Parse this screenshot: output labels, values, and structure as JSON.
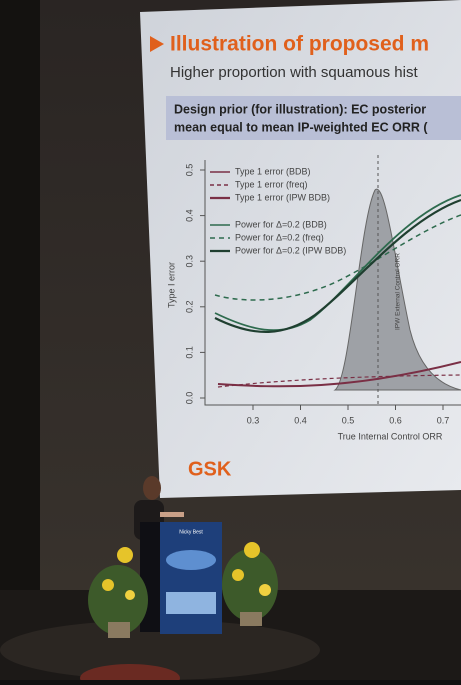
{
  "slide": {
    "title": "Illustration of proposed m",
    "subtitle": "Higher proportion with squamous hist",
    "box_lines": [
      "Design prior (for illustration): EC posterior",
      "mean equal to mean IP-weighted EC ORR ("
    ],
    "legend": [
      "Type 1 error (BDB)",
      "Type 1 error (freq)",
      "Type 1 error (IPW BDB)",
      "Power for Δ=0.2 (BDB)",
      "Power for Δ=0.2 (freq)",
      "Power for Δ=0.2 (IPW BDB)"
    ],
    "y_label": "Type I error",
    "y_ticks": [
      "0.0",
      "0.1",
      "0.2",
      "0.3",
      "0.4",
      "0.5"
    ],
    "x_label": "True Internal Control ORR",
    "x_ticks": [
      "0.3",
      "0.4",
      "0.5",
      "0.6",
      "0.7"
    ],
    "annotation": "IPW External Control ORR",
    "logo": "GSK"
  },
  "podium": {
    "name": "Nicky Best"
  }
}
